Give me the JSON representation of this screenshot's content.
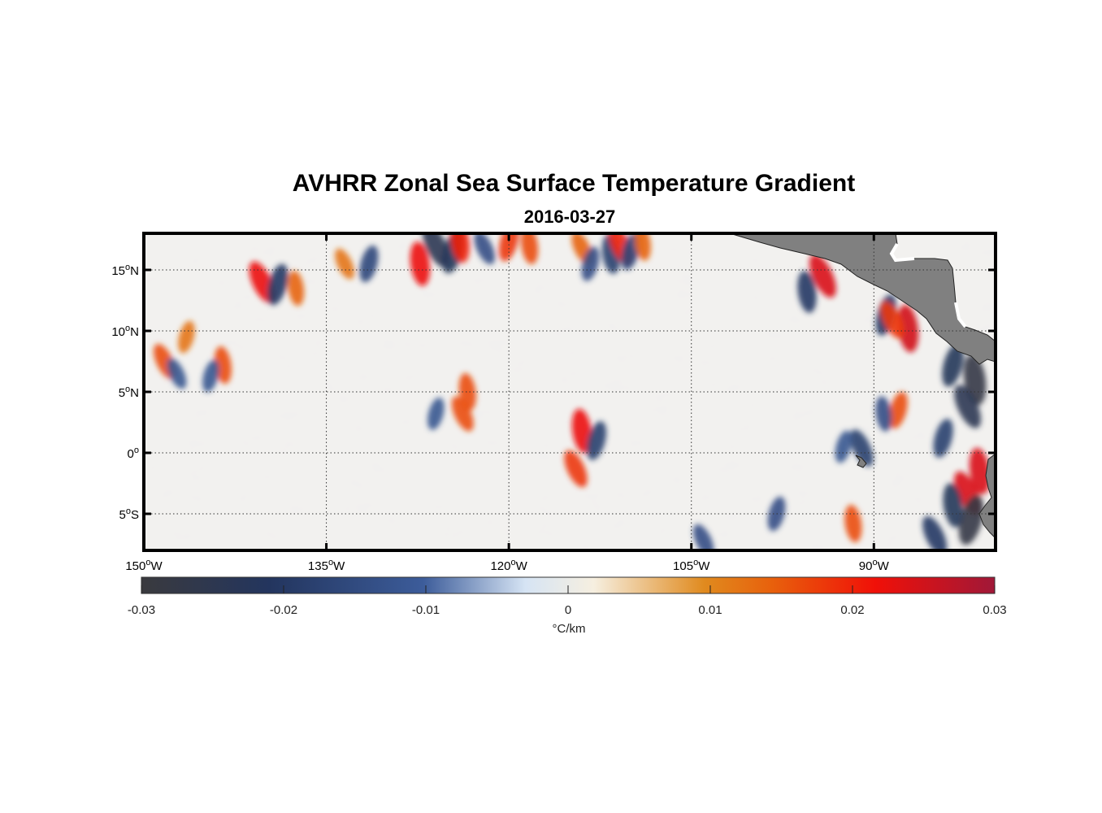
{
  "figure": {
    "title": "AVHRR Zonal Sea Surface Temperature Gradient",
    "subtitle": "2016-03-27"
  },
  "map": {
    "lon_range": [
      -150,
      -80
    ],
    "lat_range": [
      -8,
      18
    ],
    "x_ticks": [
      {
        "value": -150,
        "label": "150",
        "deg": "o",
        "hemi": "W"
      },
      {
        "value": -135,
        "label": "135",
        "deg": "o",
        "hemi": "W"
      },
      {
        "value": -120,
        "label": "120",
        "deg": "o",
        "hemi": "W"
      },
      {
        "value": -105,
        "label": "105",
        "deg": "o",
        "hemi": "W"
      },
      {
        "value": -90,
        "label": "90",
        "deg": "o",
        "hemi": "W"
      }
    ],
    "y_ticks": [
      {
        "value": 15,
        "label": "15",
        "deg": "o",
        "hemi": "N"
      },
      {
        "value": 10,
        "label": "10",
        "deg": "o",
        "hemi": "N"
      },
      {
        "value": 5,
        "label": "5",
        "deg": "o",
        "hemi": "N"
      },
      {
        "value": 0,
        "label": "0",
        "deg": "o",
        "hemi": ""
      },
      {
        "value": -5,
        "label": "5",
        "deg": "o",
        "hemi": "S"
      }
    ],
    "land_color": "#808080"
  },
  "colorbar": {
    "min": -0.03,
    "max": 0.03,
    "unit": "°C/km",
    "ticks": [
      {
        "value": -0.03,
        "label": "-0.03"
      },
      {
        "value": -0.02,
        "label": "-0.02"
      },
      {
        "value": -0.01,
        "label": "-0.01"
      },
      {
        "value": 0,
        "label": "0"
      },
      {
        "value": 0.01,
        "label": "0.01"
      },
      {
        "value": 0.02,
        "label": "0.02"
      },
      {
        "value": 0.03,
        "label": "0.03"
      }
    ],
    "stops": [
      "#3a3a3e",
      "#23355e",
      "#3c5c9a",
      "#d6e4f4",
      "#f6efe0",
      "#e08a1e",
      "#e8600c",
      "#f01008",
      "#a01838"
    ]
  },
  "features": [
    {
      "lon": -140.3,
      "lat": 14.0,
      "value": 0.022
    },
    {
      "lon": -139.0,
      "lat": 13.8,
      "value": -0.02
    },
    {
      "lon": -137.5,
      "lat": 13.5,
      "value": 0.014
    },
    {
      "lon": -133.5,
      "lat": 15.5,
      "value": 0.012
    },
    {
      "lon": -131.5,
      "lat": 15.5,
      "value": -0.016
    },
    {
      "lon": -127.3,
      "lat": 15.5,
      "value": 0.022
    },
    {
      "lon": -126.0,
      "lat": 17.0,
      "value": -0.024
    },
    {
      "lon": -124.6,
      "lat": 16.5,
      "value": -0.022
    },
    {
      "lon": -124.0,
      "lat": 17.3,
      "value": 0.02
    },
    {
      "lon": -122.0,
      "lat": 16.8,
      "value": -0.014
    },
    {
      "lon": -120.0,
      "lat": 17.3,
      "value": 0.018
    },
    {
      "lon": -118.3,
      "lat": 17.0,
      "value": 0.016
    },
    {
      "lon": -114.0,
      "lat": 16.8,
      "value": 0.014
    },
    {
      "lon": -113.3,
      "lat": 15.5,
      "value": -0.014
    },
    {
      "lon": -111.6,
      "lat": 16.3,
      "value": -0.018
    },
    {
      "lon": -110.8,
      "lat": 17.0,
      "value": 0.02
    },
    {
      "lon": -110.0,
      "lat": 16.5,
      "value": -0.016
    },
    {
      "lon": -109.0,
      "lat": 17.2,
      "value": 0.014
    },
    {
      "lon": -148.3,
      "lat": 7.5,
      "value": 0.016
    },
    {
      "lon": -146.5,
      "lat": 9.5,
      "value": 0.012
    },
    {
      "lon": -143.5,
      "lat": 7.2,
      "value": 0.016
    },
    {
      "lon": -147.3,
      "lat": 6.5,
      "value": -0.012
    },
    {
      "lon": -144.5,
      "lat": 6.3,
      "value": -0.012
    },
    {
      "lon": -123.4,
      "lat": 5.0,
      "value": 0.016
    },
    {
      "lon": -123.8,
      "lat": 3.2,
      "value": 0.016
    },
    {
      "lon": -126.0,
      "lat": 3.2,
      "value": -0.012
    },
    {
      "lon": -114.0,
      "lat": 1.8,
      "value": 0.022
    },
    {
      "lon": -114.5,
      "lat": -1.3,
      "value": 0.018
    },
    {
      "lon": -112.8,
      "lat": 1.0,
      "value": -0.018
    },
    {
      "lon": -95.5,
      "lat": 13.2,
      "value": -0.02
    },
    {
      "lon": -94.2,
      "lat": 14.5,
      "value": 0.024
    },
    {
      "lon": -89.0,
      "lat": 11.3,
      "value": -0.02
    },
    {
      "lon": -87.2,
      "lat": 10.2,
      "value": 0.025
    },
    {
      "lon": -88.5,
      "lat": 10.9,
      "value": 0.018
    },
    {
      "lon": -83.5,
      "lat": 7.2,
      "value": -0.022
    },
    {
      "lon": -81.7,
      "lat": 6.0,
      "value": -0.028
    },
    {
      "lon": -82.3,
      "lat": 3.8,
      "value": -0.024
    },
    {
      "lon": -88.0,
      "lat": 3.5,
      "value": 0.016
    },
    {
      "lon": -89.2,
      "lat": 3.2,
      "value": -0.014
    },
    {
      "lon": -91.0,
      "lat": 0.4,
      "value": -0.018
    },
    {
      "lon": -84.3,
      "lat": 1.2,
      "value": -0.018
    },
    {
      "lon": -81.3,
      "lat": -1.5,
      "value": 0.024
    },
    {
      "lon": -82.3,
      "lat": -3.3,
      "value": 0.024
    },
    {
      "lon": -82.0,
      "lat": -5.5,
      "value": -0.028
    },
    {
      "lon": -83.5,
      "lat": -4.3,
      "value": -0.022
    },
    {
      "lon": -85.0,
      "lat": -6.8,
      "value": -0.02
    },
    {
      "lon": -98.0,
      "lat": -5.0,
      "value": -0.014
    },
    {
      "lon": -91.7,
      "lat": -5.8,
      "value": 0.016
    },
    {
      "lon": -104.0,
      "lat": -7.2,
      "value": -0.014
    },
    {
      "lon": -92.5,
      "lat": 0.5,
      "value": -0.012
    }
  ]
}
